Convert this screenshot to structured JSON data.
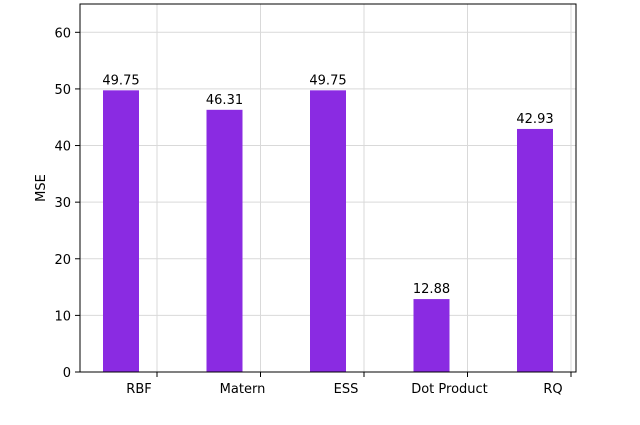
{
  "chart_data": {
    "type": "bar",
    "title": "",
    "xlabel": "",
    "ylabel": "MSE",
    "categories": [
      "RBF",
      "Matern",
      "ESS",
      "Dot Product",
      "RQ"
    ],
    "values": [
      49.75,
      46.31,
      49.75,
      12.88,
      42.93
    ],
    "data_labels": [
      "49.75",
      "46.31",
      "49.75",
      "12.88",
      "42.93"
    ],
    "ylim": [
      0,
      65
    ],
    "yticks": [
      0,
      10,
      20,
      30,
      40,
      50,
      60
    ],
    "grid": true,
    "bar_color": "#8a2be2"
  }
}
